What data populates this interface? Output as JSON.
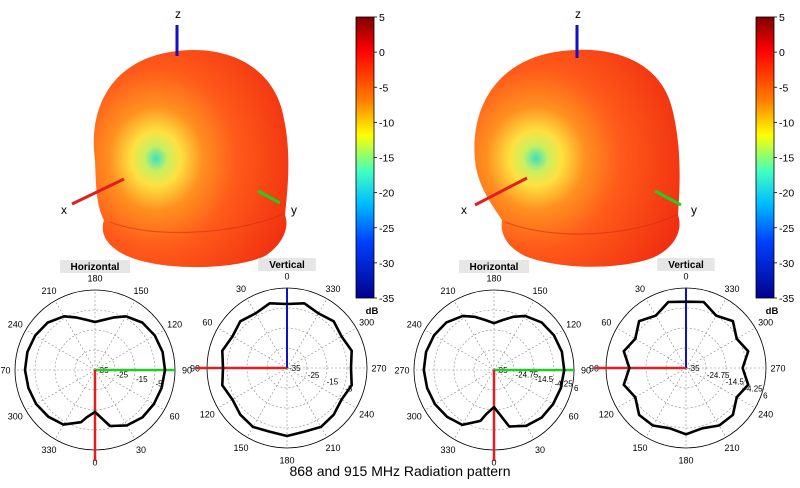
{
  "caption": "868 and 915 MHz Radiation pattern",
  "colors": {
    "x_axis": "#e02020",
    "y_axis": "#22cc22",
    "z_axis": "#1010c8",
    "pattern_line": "#000000",
    "grid": "#8a8a8a"
  },
  "chart_data": [
    {
      "type": "3d-surface",
      "panel": "left",
      "frequency": "868 MHz",
      "axis_labels": [
        "x",
        "y",
        "z"
      ],
      "colorbar": {
        "unit": "dB",
        "range": [
          -35,
          5
        ],
        "ticks": [
          "5",
          "0",
          "-5",
          "-10",
          "-15",
          "-20",
          "-25",
          "-30",
          "-35"
        ]
      }
    },
    {
      "type": "polar",
      "panel": "left",
      "title": "Horizontal",
      "angle_labels": [
        "180",
        "150",
        "120",
        "90",
        "60",
        "30",
        "0",
        "330",
        "300",
        "270",
        "240",
        "210"
      ],
      "radial_labels": [
        "-35",
        "-25",
        "-15",
        "-5"
      ],
      "radial_range": [
        -35,
        5
      ],
      "pattern": {
        "angles": [
          0,
          15,
          30,
          45,
          60,
          75,
          90,
          105,
          120,
          135,
          150,
          160,
          170,
          180,
          190,
          200,
          210,
          225,
          240,
          255,
          270,
          285,
          300,
          315,
          330,
          345,
          350,
          360
        ],
        "gain_db": [
          -14,
          -6,
          -3,
          -1.5,
          -1,
          -0.5,
          0,
          0,
          -0.5,
          -1.5,
          -4,
          -7,
          -9.5,
          -11,
          -9.5,
          -7,
          -4,
          -1.5,
          -0.5,
          0,
          0,
          -0.5,
          -1,
          -2,
          -3.5,
          -8,
          -11,
          -14
        ]
      }
    },
    {
      "type": "polar",
      "panel": "left",
      "title": "Vertical",
      "angle_labels": [
        "0",
        "330",
        "300",
        "270",
        "240",
        "210",
        "180",
        "150",
        "120",
        "90",
        "60",
        "30"
      ],
      "radial_labels": [
        "-35",
        "-25",
        "-15",
        "-5"
      ],
      "radial_range": [
        -35,
        5
      ],
      "pattern": {
        "angles": [
          0,
          15,
          30,
          45,
          60,
          75,
          90,
          105,
          120,
          135,
          150,
          165,
          180,
          195,
          210,
          225,
          240,
          255,
          270,
          285,
          300,
          315,
          330,
          345,
          360
        ],
        "gain_db": [
          -3,
          -1.5,
          -3.5,
          -2,
          -3.5,
          -1.5,
          -3,
          -1.5,
          -3.5,
          -2,
          -1,
          -2,
          -1,
          -2,
          -1,
          -2,
          -3.5,
          -1.5,
          -3,
          -1.5,
          -3.5,
          -2,
          -3.5,
          -1.5,
          -3
        ]
      }
    },
    {
      "type": "3d-surface",
      "panel": "right",
      "frequency": "915 MHz",
      "axis_labels": [
        "x",
        "y",
        "z"
      ],
      "colorbar": {
        "unit": "dB",
        "range": [
          -35,
          5
        ],
        "ticks": [
          "5",
          "0",
          "-5",
          "-10",
          "-15",
          "-20",
          "-25",
          "-30",
          "-35"
        ]
      }
    },
    {
      "type": "polar",
      "panel": "right",
      "title": "Horizontal",
      "angle_labels": [
        "180",
        "150",
        "120",
        "90",
        "60",
        "30",
        "0",
        "330",
        "300",
        "270",
        "240",
        "210"
      ],
      "radial_labels": [
        "-35",
        "-24.75",
        "-14.5",
        "-4.25",
        "6"
      ],
      "radial_range": [
        -35,
        6
      ],
      "pattern": {
        "angles": [
          0,
          15,
          30,
          45,
          60,
          75,
          90,
          105,
          120,
          135,
          150,
          160,
          170,
          180,
          190,
          200,
          210,
          225,
          240,
          255,
          270,
          285,
          300,
          315,
          330,
          345,
          350,
          360
        ],
        "gain_db": [
          -16,
          -5,
          -2,
          -0.5,
          0,
          0.5,
          1,
          1,
          0.5,
          -0.5,
          -3,
          -6,
          -9,
          -11,
          -9,
          -6,
          -3,
          -0.5,
          0.5,
          1,
          1,
          0.5,
          0,
          -1,
          -2.5,
          -8,
          -12,
          -16
        ]
      }
    },
    {
      "type": "polar",
      "panel": "right",
      "title": "Vertical",
      "angle_labels": [
        "0",
        "330",
        "300",
        "270",
        "240",
        "210",
        "180",
        "150",
        "120",
        "90",
        "60",
        "30"
      ],
      "radial_labels": [
        "-35",
        "-24.75",
        "-14.5",
        "-4.25",
        "6"
      ],
      "radial_range": [
        -35,
        6
      ],
      "pattern": {
        "angles": [
          0,
          15,
          30,
          45,
          60,
          75,
          90,
          105,
          120,
          135,
          150,
          165,
          180,
          195,
          210,
          225,
          240,
          255,
          270,
          285,
          300,
          315,
          330,
          345,
          360
        ],
        "gain_db": [
          -1,
          0,
          -4,
          -1,
          -5,
          -2,
          -6,
          -2,
          -5,
          -1,
          -1,
          -3,
          -1,
          -3,
          -1,
          -1,
          -5,
          -2,
          -6,
          -2,
          -5,
          -1,
          -4,
          0,
          -1
        ]
      }
    }
  ]
}
